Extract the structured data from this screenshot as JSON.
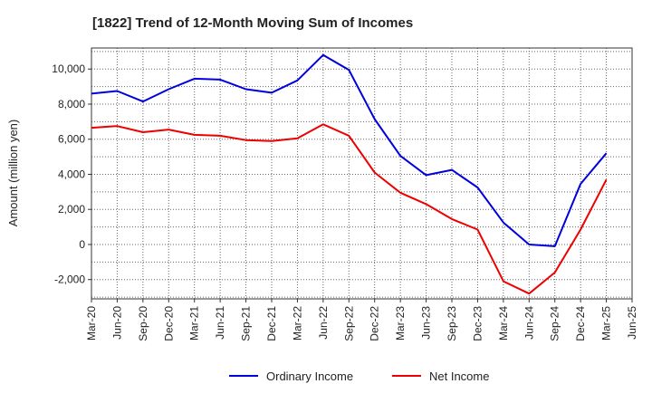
{
  "chart_data": {
    "type": "line",
    "title": "[1822]  Trend of 12-Month Moving Sum of Incomes",
    "xlabel": "",
    "ylabel": "Amount (million yen)",
    "x_tick_labels": [
      "Mar-20",
      "Jun-20",
      "Sep-20",
      "Dec-20",
      "Mar-21",
      "Jun-21",
      "Sep-21",
      "Dec-21",
      "Mar-22",
      "Jun-22",
      "Sep-22",
      "Dec-22",
      "Mar-23",
      "Jun-23",
      "Sep-23",
      "Dec-23",
      "Mar-24",
      "Jun-24",
      "Sep-24",
      "Dec-24",
      "Mar-25",
      "Jun-25"
    ],
    "y_ticks": [
      -2000,
      0,
      2000,
      4000,
      6000,
      8000,
      10000
    ],
    "y_tick_labels": [
      "-2,000",
      "0",
      "2,000",
      "4,000",
      "6,000",
      "8,000",
      "10,000"
    ],
    "ylim": [
      -3100,
      11200
    ],
    "grid": true,
    "legend_position": "bottom",
    "series": [
      {
        "name": "Ordinary Income",
        "color": "#0000dd",
        "values": [
          8600,
          8750,
          8150,
          8850,
          9450,
          9400,
          8850,
          8650,
          9350,
          10800,
          9950,
          7150,
          5050,
          3950,
          4250,
          3250,
          1250,
          0,
          -100,
          3450,
          5200
        ]
      },
      {
        "name": "Net Income",
        "color": "#ee0000",
        "values": [
          6650,
          6750,
          6400,
          6550,
          6250,
          6200,
          5950,
          5900,
          6050,
          6850,
          6200,
          4100,
          2950,
          2300,
          1450,
          850,
          -2100,
          -2800,
          -1600,
          850,
          3700
        ]
      }
    ]
  }
}
